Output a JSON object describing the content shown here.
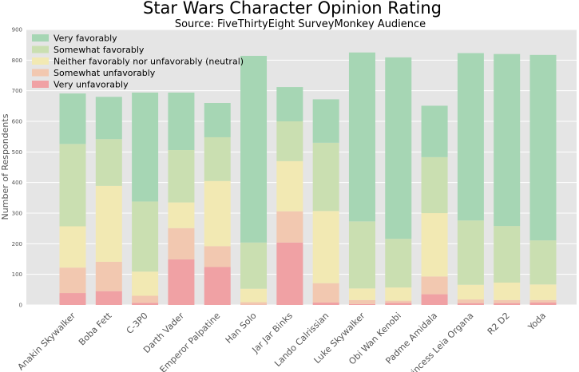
{
  "chart_data": {
    "type": "bar",
    "stacked": true,
    "title": "Star Wars Character Opinion Rating",
    "subtitle": "Source: FiveThirtyEight SurveyMonkey Audience",
    "ylabel": "Number of Respondents",
    "xlabel": "",
    "ylim": [
      0,
      900
    ],
    "yticks": [
      0,
      100,
      200,
      300,
      400,
      500,
      600,
      700,
      800,
      900
    ],
    "grid": true,
    "legend_position": "top-left",
    "categories": [
      "Anakin Skywalker",
      "Boba Fett",
      "C-3P0",
      "Darth Vader",
      "Emperor Palpatine",
      "Han Solo",
      "Jar Jar Binks",
      "Lando Calrissian",
      "Luke Skywalker",
      "Obi Wan Kenobi",
      "Padme Amidala",
      "Princess Leia Organa",
      "R2 D2",
      "Yoda"
    ],
    "series": [
      {
        "name": "Very unfavorably",
        "color": "#f0a1a4",
        "values": [
          39,
          45,
          7,
          149,
          124,
          1,
          204,
          8,
          3,
          7,
          35,
          6,
          6,
          8
        ]
      },
      {
        "name": "Somewhat unfavorably",
        "color": "#f2c8b0",
        "values": [
          83,
          96,
          23,
          102,
          68,
          8,
          102,
          63,
          13,
          7,
          58,
          12,
          10,
          8
        ]
      },
      {
        "name": "Neither favorably nor unfavorably (neutral)",
        "color": "#f2e9b3",
        "values": [
          135,
          248,
          79,
          84,
          213,
          44,
          164,
          236,
          38,
          43,
          207,
          48,
          57,
          51
        ]
      },
      {
        "name": "Somewhat favorably",
        "color": "#cadfb1",
        "values": [
          269,
          153,
          229,
          171,
          143,
          151,
          130,
          223,
          219,
          159,
          183,
          210,
          185,
          144
        ]
      },
      {
        "name": "Very favorably",
        "color": "#a6d6b4",
        "values": [
          165,
          138,
          356,
          188,
          112,
          610,
          112,
          142,
          552,
          593,
          168,
          547,
          562,
          606
        ]
      }
    ]
  },
  "legend": {
    "items": [
      {
        "label": "Very favorably",
        "color": "#a6d6b4"
      },
      {
        "label": "Somewhat favorably",
        "color": "#cadfb1"
      },
      {
        "label": "Neither favorably nor unfavorably (neutral)",
        "color": "#f2e9b3"
      },
      {
        "label": "Somewhat unfavorably",
        "color": "#f2c8b0"
      },
      {
        "label": "Very unfavorably",
        "color": "#f0a1a4"
      }
    ]
  },
  "colors": {
    "plot_background": "#e5e5e5",
    "grid": "#ffffff"
  }
}
